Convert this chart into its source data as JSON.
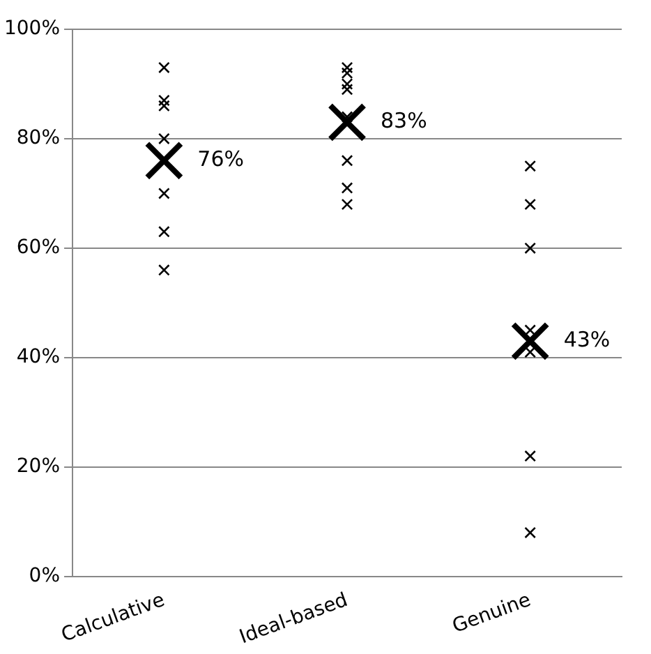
{
  "chart_data": {
    "type": "scatter",
    "categories": [
      "Calculative",
      "Ideal-based",
      "Genuine"
    ],
    "series": [
      {
        "color": "#000000",
        "x": [
          "Calculative",
          "Calculative",
          "Calculative",
          "Calculative",
          "Calculative",
          "Calculative",
          "Calculative",
          "Ideal-based",
          "Ideal-based",
          "Ideal-based",
          "Ideal-based",
          "Ideal-based",
          "Ideal-based",
          "Ideal-based",
          "Ideal-based",
          "Genuine",
          "Genuine",
          "Genuine",
          "Genuine",
          "Genuine",
          "Genuine",
          "Genuine"
        ],
        "values": [
          93,
          87,
          86,
          80,
          70,
          63,
          56,
          93,
          92,
          90,
          89,
          84,
          76,
          71,
          68,
          75,
          68,
          60,
          45,
          41,
          22,
          8
        ]
      },
      {
        "color": "#000000",
        "x": [
          "Calculative",
          "Ideal-based",
          "Genuine"
        ],
        "values": [
          76,
          83,
          43
        ],
        "value_labels": [
          "76%",
          "83%",
          "43%"
        ]
      }
    ],
    "ylim": [
      0,
      100
    ],
    "yticks": [
      {
        "value": 0,
        "label": "0%"
      },
      {
        "value": 20,
        "label": "20%"
      },
      {
        "value": 40,
        "label": "40%"
      },
      {
        "value": 60,
        "label": "60%"
      },
      {
        "value": 80,
        "label": "80%"
      },
      {
        "value": 100,
        "label": "100%"
      }
    ],
    "grid": "y",
    "legend": false,
    "marker": "cross"
  }
}
